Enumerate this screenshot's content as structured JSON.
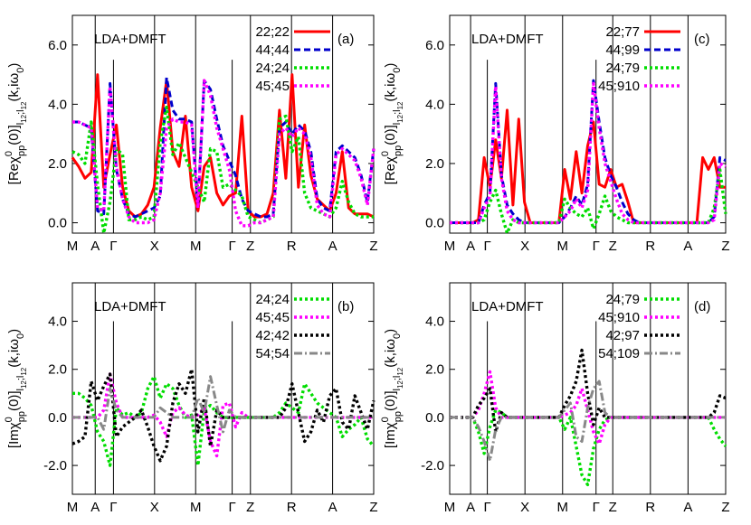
{
  "chart_data": [
    {
      "type": "line",
      "panel_label": "(a)",
      "annotation": "LDA+DMFT",
      "ylabel_parts": {
        "prefix": "[Re",
        "chi": "χ",
        "sup": "0",
        "sub": "pp",
        "mid": "(0)]",
        "subidx": "l",
        "sub1": "1",
        "sub2": "2",
        "sep": ";",
        "suffix": "(k,iω",
        "suffix_sub": "0",
        "close": ")"
      },
      "ylim": [
        -0.35,
        7.0
      ],
      "yticks": [
        "6.0",
        "4.0",
        "2.0",
        "0.0"
      ],
      "ytick_values": [
        6.0,
        4.0,
        2.0,
        0.0
      ],
      "xtick_labels": [
        "M",
        "A",
        "Γ",
        "X",
        "M",
        "Γ",
        "Z",
        "R",
        "A",
        "Z"
      ],
      "xtick_pos": [
        0,
        2.5,
        4.5,
        9.0,
        13.5,
        17.5,
        19.5,
        24.0,
        28.5,
        33.0
      ],
      "kpath_lines": [
        2.5,
        9.0,
        13.5,
        19.5,
        24.0,
        28.5
      ],
      "kpath_short": [
        4.5,
        17.5
      ],
      "legend_position": "top-right",
      "series": [
        {
          "name": "22;22",
          "color": "#ff0000",
          "style": "solid",
          "values": [
            2.2,
            1.9,
            1.5,
            1.7,
            5.0,
            1.2,
            2.3,
            3.3,
            1.2,
            0.4,
            0.2,
            0.3,
            0.6,
            1.2,
            3.2,
            4.8,
            2.4,
            1.9,
            3.6,
            1.2,
            0.4,
            1.9,
            2.2,
            1.0,
            0.6,
            0.9,
            1.0,
            3.6,
            0.4,
            0.2,
            0.2,
            0.3,
            1.0,
            3.8,
            1.5,
            5.0,
            1.2,
            3.3,
            1.6,
            0.8,
            0.6,
            0.4,
            1.0,
            2.4,
            0.5,
            0.3,
            0.3,
            0.3,
            0.2
          ]
        },
        {
          "name": "44;44",
          "color": "#0000cc",
          "style": "dashed",
          "values": [
            3.4,
            3.4,
            3.3,
            3.2,
            0.4,
            0.3,
            4.7,
            1.8,
            0.8,
            0.3,
            0.2,
            0.3,
            0.4,
            0.5,
            0.9,
            4.9,
            3.8,
            3.5,
            3.5,
            3.4,
            0.6,
            4.8,
            4.5,
            3.5,
            2.6,
            2.1,
            1.6,
            0.8,
            0.4,
            0.3,
            0.2,
            0.2,
            0.3,
            3.2,
            3.4,
            3.0,
            3.3,
            3.1,
            2.4,
            0.8,
            0.5,
            0.4,
            2.4,
            2.6,
            2.4,
            2.2,
            1.6,
            0.7,
            2.5
          ]
        },
        {
          "name": "24;24",
          "color": "#00dd00",
          "style": "dotted",
          "values": [
            2.4,
            2.3,
            2.0,
            3.4,
            1.3,
            -0.4,
            0.7,
            2.5,
            2.3,
            0.1,
            0.1,
            0.2,
            0.1,
            0.2,
            2.7,
            3.9,
            2.3,
            2.7,
            2.2,
            1.7,
            1.2,
            0.7,
            2.5,
            2.4,
            1.2,
            1.3,
            1.1,
            0.9,
            0.2,
            0.1,
            0.0,
            0.1,
            0.2,
            3.5,
            3.6,
            2.4,
            2.9,
            1.0,
            0.5,
            0.4,
            0.3,
            0.2,
            0.5,
            1.4,
            0.7,
            0.3,
            0.2,
            0.2,
            0.2
          ]
        },
        {
          "name": "45;45",
          "color": "#ff00ff",
          "style": "dotted",
          "values": [
            3.4,
            3.4,
            3.3,
            3.2,
            0.5,
            0.4,
            4.6,
            1.9,
            0.8,
            0.2,
            0.0,
            0.0,
            0.0,
            0.1,
            1.0,
            3.2,
            3.5,
            3.4,
            3.4,
            3.3,
            0.5,
            4.8,
            4.3,
            3.2,
            2.5,
            1.8,
            0.4,
            -0.1,
            -0.1,
            0.0,
            0.0,
            0.1,
            0.2,
            3.0,
            3.2,
            2.9,
            3.2,
            3.0,
            2.2,
            0.6,
            0.3,
            0.2,
            2.3,
            2.5,
            2.3,
            2.1,
            1.5,
            0.6,
            2.5
          ]
        }
      ]
    },
    {
      "type": "line",
      "panel_label": "(c)",
      "annotation": "LDA+DMFT",
      "ylim": [
        -0.35,
        7.0
      ],
      "yticks": [
        "6.0",
        "4.0",
        "2.0",
        "0.0"
      ],
      "ytick_values": [
        6.0,
        4.0,
        2.0,
        0.0
      ],
      "xtick_labels": [
        "M",
        "A",
        "Γ",
        "X",
        "M",
        "Γ",
        "Z",
        "R",
        "A",
        "Z"
      ],
      "xtick_pos": [
        0,
        2.5,
        4.5,
        9.0,
        13.5,
        17.5,
        19.5,
        24.0,
        28.5,
        33.0
      ],
      "kpath_lines": [
        2.5,
        9.0,
        13.5,
        19.5,
        24.0,
        28.5
      ],
      "kpath_short": [
        4.5,
        17.5
      ],
      "legend_position": "top-right",
      "series": [
        {
          "name": "22;77",
          "color": "#ff0000",
          "style": "solid",
          "values": [
            0.0,
            0.0,
            0.0,
            0.0,
            0.0,
            0.1,
            2.2,
            1.2,
            2.8,
            1.5,
            3.8,
            0.6,
            3.5,
            0.7,
            0.0,
            0.0,
            0.0,
            0.0,
            0.0,
            0.0,
            1.8,
            0.8,
            2.4,
            1.0,
            2.6,
            3.4,
            1.3,
            1.2,
            1.8,
            1.2,
            1.3,
            0.7,
            0.0,
            0.0,
            0.0,
            0.0,
            0.0,
            0.0,
            0.0,
            0.0,
            0.0,
            0.0,
            0.0,
            0.0,
            2.2,
            1.8,
            2.2,
            1.2,
            1.2
          ]
        },
        {
          "name": "44;99",
          "color": "#0000cc",
          "style": "dashed",
          "values": [
            0.0,
            0.0,
            0.0,
            0.0,
            0.0,
            0.0,
            0.6,
            1.0,
            4.7,
            1.6,
            0.6,
            0.3,
            0.1,
            0.0,
            0.0,
            0.0,
            0.0,
            0.0,
            0.0,
            0.0,
            0.2,
            0.5,
            0.9,
            0.6,
            1.3,
            4.8,
            3.4,
            2.2,
            1.6,
            1.2,
            0.7,
            0.3,
            0.1,
            0.0,
            0.0,
            0.0,
            0.0,
            0.0,
            0.0,
            0.0,
            0.0,
            0.0,
            0.0,
            0.0,
            0.0,
            0.0,
            0.2,
            2.2,
            2.1
          ]
        },
        {
          "name": "24;79",
          "color": "#00dd00",
          "style": "dotted",
          "values": [
            0.0,
            0.0,
            0.0,
            0.0,
            0.0,
            0.0,
            0.1,
            0.7,
            1.1,
            0.3,
            -0.4,
            0.1,
            0.0,
            0.0,
            0.0,
            0.0,
            0.0,
            0.0,
            0.0,
            0.0,
            0.8,
            0.5,
            0.3,
            0.2,
            0.5,
            -0.2,
            0.3,
            0.9,
            0.4,
            0.2,
            0.1,
            0.0,
            0.0,
            0.0,
            0.0,
            0.0,
            0.0,
            0.0,
            0.0,
            0.0,
            0.0,
            0.0,
            0.0,
            0.0,
            0.0,
            0.0,
            0.5,
            1.8,
            0.3
          ]
        },
        {
          "name": "45;910",
          "color": "#ff00ff",
          "style": "dotted",
          "values": [
            0.0,
            0.0,
            0.0,
            0.0,
            0.0,
            0.0,
            0.5,
            0.9,
            4.6,
            1.5,
            0.4,
            0.1,
            0.0,
            0.0,
            0.0,
            0.0,
            0.0,
            0.0,
            0.0,
            0.0,
            0.2,
            0.4,
            0.8,
            0.5,
            1.1,
            4.7,
            3.2,
            2.0,
            1.4,
            0.8,
            0.3,
            0.1,
            0.0,
            0.0,
            0.0,
            0.0,
            0.0,
            0.0,
            0.0,
            0.0,
            0.0,
            0.0,
            0.0,
            0.0,
            0.0,
            0.0,
            0.1,
            2.0,
            1.9
          ]
        }
      ]
    },
    {
      "type": "line",
      "panel_label": "(b)",
      "annotation": "LDA+DMFT",
      "ylim": [
        -3.2,
        5.6
      ],
      "yticks": [
        "4.0",
        "2.0",
        "0.0",
        "-2.0"
      ],
      "ytick_values": [
        4.0,
        2.0,
        0.0,
        -2.0
      ],
      "xtick_labels": [
        "M",
        "A",
        "Γ",
        "X",
        "M",
        "Γ",
        "Z",
        "R",
        "A",
        "Z"
      ],
      "xtick_pos": [
        0,
        2.5,
        4.5,
        9.0,
        13.5,
        17.5,
        19.5,
        24.0,
        28.5,
        33.0
      ],
      "kpath_lines": [
        2.5,
        9.0,
        13.5,
        19.5,
        24.0,
        28.5
      ],
      "kpath_short": [
        4.5,
        17.5
      ],
      "legend_position": "top-right",
      "series": [
        {
          "name": "24;24",
          "color": "#00dd00",
          "style": "dotted",
          "values": [
            1.0,
            1.0,
            0.8,
            0.5,
            -0.6,
            -1.0,
            -2.0,
            0.4,
            0.1,
            0.2,
            0.0,
            0.2,
            1.2,
            1.7,
            0.8,
            1.4,
            1.2,
            0.5,
            0.0,
            0.1,
            -2.0,
            0.3,
            0.5,
            0.2,
            0.0,
            0.0,
            0.0,
            0.0,
            0.0,
            0.0,
            0.0,
            0.0,
            0.0,
            0.2,
            0.6,
            0.4,
            0.2,
            1.4,
            1.0,
            0.6,
            0.4,
            0.2,
            0.0,
            -0.8,
            -0.5,
            -0.3,
            0.0,
            -0.9,
            -1.2
          ]
        },
        {
          "name": "45;45",
          "color": "#ff00ff",
          "style": "dotted",
          "values": [
            0.0,
            0.0,
            0.0,
            0.0,
            0.0,
            0.3,
            1.8,
            0.6,
            0.0,
            0.0,
            0.0,
            0.0,
            0.0,
            0.1,
            -0.2,
            -0.8,
            0.2,
            0.4,
            0.1,
            0.0,
            0.1,
            0.4,
            -1.0,
            -1.6,
            0.5,
            0.6,
            -0.4,
            0.2,
            0.0,
            0.0,
            0.0,
            0.0,
            0.0,
            0.0,
            0.0,
            0.0,
            0.0,
            0.0,
            0.0,
            0.0,
            0.0,
            0.0,
            0.0,
            0.0,
            0.0,
            0.0,
            0.0,
            0.0,
            0.0
          ]
        },
        {
          "name": "42;42",
          "color": "#000000",
          "style": "dotted",
          "values": [
            -1.1,
            -1.0,
            -0.8,
            1.5,
            0.7,
            1.3,
            1.8,
            -0.8,
            -0.4,
            -0.2,
            0.0,
            0.3,
            -0.4,
            -1.2,
            -1.8,
            -1.2,
            0.6,
            1.4,
            1.0,
            2.0,
            -0.6,
            0.8,
            -1.2,
            0.3,
            0.0,
            0.0,
            0.0,
            0.0,
            0.0,
            0.0,
            0.0,
            0.0,
            0.0,
            0.0,
            0.4,
            1.4,
            0.2,
            -1.0,
            -0.6,
            0.3,
            -0.2,
            0.9,
            1.2,
            -0.2,
            -0.5,
            0.9,
            0.2,
            -0.5,
            0.7
          ]
        },
        {
          "name": "54;54",
          "color": "#888888",
          "style": "dashdot",
          "values": [
            0.0,
            0.0,
            0.0,
            0.0,
            0.0,
            -0.5,
            1.2,
            0.3,
            0.0,
            0.0,
            0.0,
            0.0,
            0.0,
            0.0,
            0.4,
            0.2,
            0.0,
            0.0,
            0.0,
            0.0,
            0.8,
            0.2,
            1.7,
            0.5,
            -0.6,
            0.3,
            0.0,
            0.0,
            0.0,
            0.0,
            0.0,
            0.0,
            0.0,
            0.0,
            0.0,
            0.0,
            0.0,
            0.0,
            0.0,
            0.0,
            0.0,
            0.0,
            0.0,
            0.0,
            0.0,
            0.0,
            0.0,
            0.0,
            0.0
          ]
        }
      ]
    },
    {
      "type": "line",
      "panel_label": "(d)",
      "annotation": "LDA+DMFT",
      "ylim": [
        -3.2,
        5.6
      ],
      "yticks": [
        "4.0",
        "2.0",
        "0.0",
        "-2.0"
      ],
      "ytick_values": [
        4.0,
        2.0,
        0.0,
        -2.0
      ],
      "xtick_labels": [
        "M",
        "A",
        "Γ",
        "X",
        "M",
        "Γ",
        "Z",
        "R",
        "A",
        "Z"
      ],
      "xtick_pos": [
        0,
        2.5,
        4.5,
        9.0,
        13.5,
        17.5,
        19.5,
        24.0,
        28.5,
        33.0
      ],
      "kpath_lines": [
        2.5,
        9.0,
        13.5,
        19.5,
        24.0,
        28.5
      ],
      "kpath_short": [
        4.5,
        17.5
      ],
      "legend_position": "top-right",
      "series": [
        {
          "name": "24;79",
          "color": "#00dd00",
          "style": "dotted",
          "values": [
            0.0,
            0.0,
            0.0,
            0.0,
            0.0,
            -0.6,
            -1.5,
            -0.4,
            0.3,
            0.2,
            0.0,
            0.0,
            0.0,
            0.0,
            0.0,
            0.0,
            0.0,
            0.0,
            0.0,
            0.0,
            -0.5,
            0.0,
            -1.2,
            -2.4,
            -2.8,
            -1.3,
            -0.5,
            -0.1,
            0.0,
            0.0,
            0.0,
            0.0,
            0.0,
            0.0,
            0.0,
            0.0,
            0.0,
            0.0,
            0.0,
            0.0,
            0.0,
            0.0,
            0.0,
            0.0,
            0.0,
            0.0,
            -0.5,
            -0.9,
            -1.2
          ]
        },
        {
          "name": "45;910",
          "color": "#ff00ff",
          "style": "dotted",
          "values": [
            0.0,
            0.0,
            0.0,
            0.0,
            0.0,
            0.3,
            1.0,
            1.9,
            0.4,
            0.0,
            0.0,
            0.0,
            0.0,
            0.0,
            0.0,
            0.0,
            0.0,
            0.0,
            0.0,
            0.0,
            0.1,
            0.2,
            0.5,
            1.2,
            0.3,
            -0.6,
            -1.1,
            -0.3,
            0.0,
            0.0,
            0.0,
            0.0,
            0.0,
            0.0,
            0.0,
            0.0,
            0.0,
            0.0,
            0.0,
            0.0,
            0.0,
            0.0,
            0.0,
            0.0,
            0.0,
            0.0,
            0.0,
            0.0,
            0.0
          ]
        },
        {
          "name": "42;97",
          "color": "#000000",
          "style": "dotted",
          "values": [
            0.0,
            0.0,
            0.0,
            0.0,
            0.0,
            0.5,
            0.8,
            1.2,
            -0.6,
            0.2,
            0.0,
            0.0,
            0.0,
            0.0,
            0.0,
            0.0,
            0.0,
            0.0,
            0.0,
            0.0,
            0.5,
            0.9,
            1.5,
            2.8,
            1.0,
            -0.3,
            0.4,
            0.0,
            0.0,
            0.0,
            0.0,
            0.0,
            0.0,
            0.0,
            0.0,
            0.0,
            0.0,
            0.0,
            0.0,
            0.0,
            0.0,
            0.0,
            0.0,
            0.0,
            0.0,
            0.0,
            0.2,
            0.9,
            0.8
          ]
        },
        {
          "name": "54;109",
          "color": "#888888",
          "style": "dashdot",
          "values": [
            0.0,
            0.0,
            0.0,
            0.0,
            0.0,
            -0.4,
            -1.0,
            -1.8,
            -0.5,
            0.0,
            0.0,
            0.0,
            0.0,
            0.0,
            0.0,
            0.0,
            0.0,
            0.0,
            0.0,
            0.0,
            0.3,
            0.6,
            -0.8,
            -1.0,
            0.4,
            1.2,
            1.5,
            0.2,
            0.0,
            0.0,
            0.0,
            0.0,
            0.0,
            0.0,
            0.0,
            0.0,
            0.0,
            0.0,
            0.0,
            0.0,
            0.0,
            0.0,
            0.0,
            0.0,
            0.0,
            0.0,
            0.0,
            0.0,
            0.0
          ]
        }
      ]
    }
  ]
}
